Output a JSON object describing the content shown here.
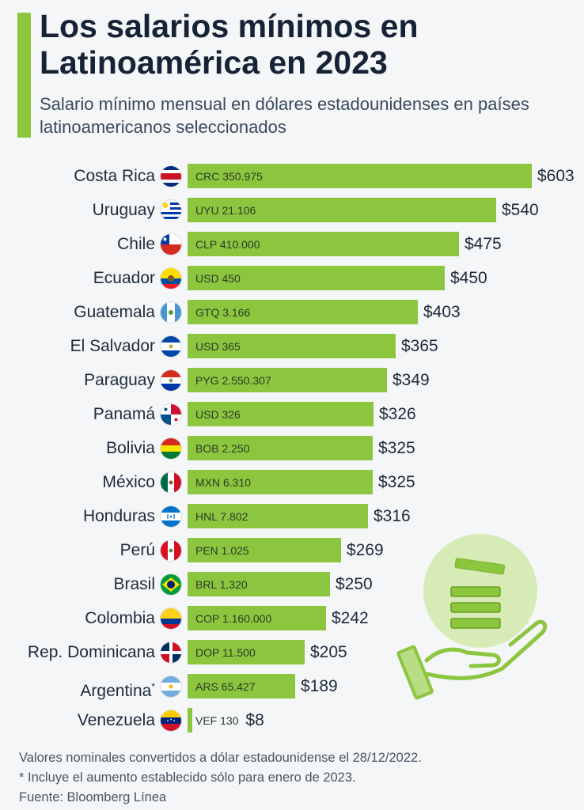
{
  "header": {
    "title": "Los salarios mínimos en Latinoamérica en 2023",
    "subtitle": "Salario mínimo mensual en dólares estadounidenses en países latinoamericanos seleccionados"
  },
  "colors": {
    "accent": "#8cc63f",
    "text": "#1e2b3a",
    "background": "#f4f6f8"
  },
  "chart_data": {
    "type": "bar",
    "orientation": "horizontal",
    "title": "Los salarios mínimos en Latinoamérica en 2023",
    "subtitle": "Salario mínimo mensual en dólares estadounidenses en países latinoamericanos seleccionados",
    "categories": [
      "Costa Rica",
      "Uruguay",
      "Chile",
      "Ecuador",
      "Guatemala",
      "El Salvador",
      "Paraguay",
      "Panamá",
      "Bolivia",
      "México",
      "Honduras",
      "Perú",
      "Brasil",
      "Colombia",
      "Rep. Dominicana",
      "Argentina",
      "Venezuela"
    ],
    "category_notes": [
      "",
      "",
      "",
      "",
      "",
      "",
      "",
      "",
      "",
      "",
      "",
      "",
      "",
      "",
      "",
      "*",
      ""
    ],
    "flag_icons": [
      "costa-rica-flag-icon",
      "uruguay-flag-icon",
      "chile-flag-icon",
      "ecuador-flag-icon",
      "guatemala-flag-icon",
      "el-salvador-flag-icon",
      "paraguay-flag-icon",
      "panama-flag-icon",
      "bolivia-flag-icon",
      "mexico-flag-icon",
      "honduras-flag-icon",
      "peru-flag-icon",
      "brasil-flag-icon",
      "colombia-flag-icon",
      "rep-dominicana-flag-icon",
      "argentina-flag-icon",
      "venezuela-flag-icon"
    ],
    "values": [
      603,
      540,
      475,
      450,
      403,
      365,
      349,
      326,
      325,
      325,
      316,
      269,
      250,
      242,
      205,
      189,
      8
    ],
    "value_labels": [
      "$603",
      "$540",
      "$475",
      "$450",
      "$403",
      "$365",
      "$349",
      "$326",
      "$325",
      "$325",
      "$316",
      "$269",
      "$250",
      "$242",
      "$205",
      "$189",
      "$8"
    ],
    "local_currency_labels": [
      "CRC 350.975",
      "UYU 21.106",
      "CLP 410.000",
      "USD 450",
      "GTQ 3.166",
      "USD 365",
      "PYG 2.550.307",
      "USD 326",
      "BOB 2.250",
      "MXN 6.310",
      "HNL 7.802",
      "PEN 1.025",
      "BRL 1.320",
      "COP 1.160.000",
      "DOP 11.500",
      "ARS 65.427",
      "VEF 130"
    ],
    "xlim": [
      0,
      603
    ],
    "grid": false,
    "legend": "none"
  },
  "footer": {
    "note1": "Valores nominales convertidos a dólar estadounidense el 28/12/2022.",
    "note2": "* Incluye el aumento establecido sólo para enero de 2023.",
    "source": "Fuente: Bloomberg Línea"
  },
  "decoration": {
    "icon": "hand-holding-coins-icon"
  }
}
